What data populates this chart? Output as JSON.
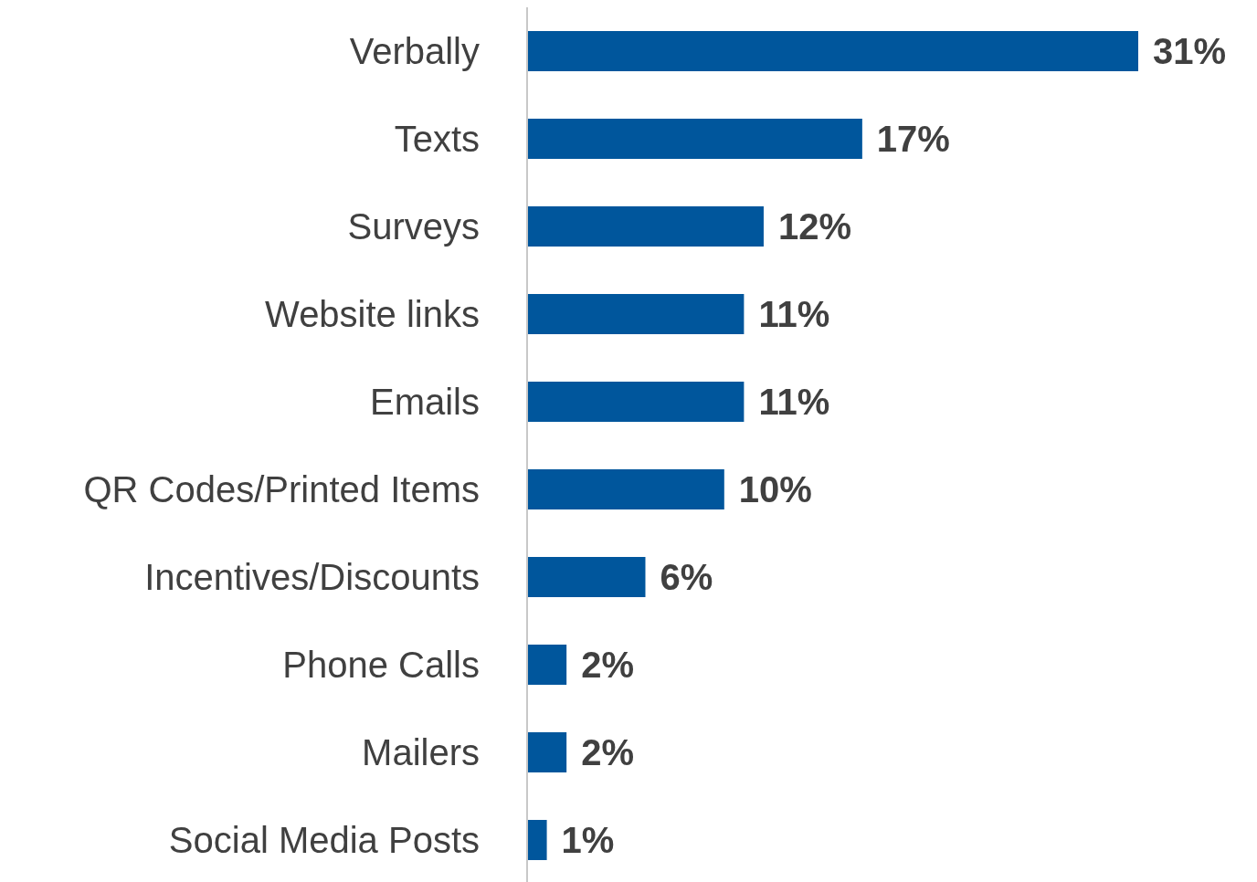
{
  "chart_data": {
    "type": "bar",
    "orientation": "horizontal",
    "categories": [
      "Verbally",
      "Texts",
      "Surveys",
      "Website links",
      "Emails",
      "QR Codes/Printed Items",
      "Incentives/Discounts",
      "Phone Calls",
      "Mailers",
      "Social Media Posts"
    ],
    "values": [
      31,
      17,
      12,
      11,
      11,
      10,
      6,
      2,
      2,
      1
    ],
    "value_labels": [
      "31%",
      "17%",
      "12%",
      "11%",
      "11%",
      "10%",
      "6%",
      "2%",
      "2%",
      "1%"
    ],
    "color": "#00569c"
  }
}
